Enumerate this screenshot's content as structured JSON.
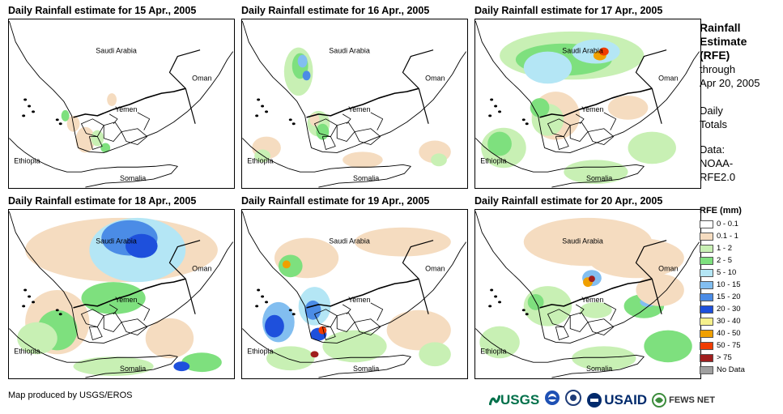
{
  "panels": [
    {
      "title": "Daily Rainfall estimate for 15 Apr., 2005",
      "level": 1
    },
    {
      "title": "Daily Rainfall estimate for 16 Apr., 2005",
      "level": 2
    },
    {
      "title": "Daily Rainfall estimate for 17 Apr., 2005",
      "level": 3
    },
    {
      "title": "Daily Rainfall estimate for 18 Apr., 2005",
      "level": 4
    },
    {
      "title": "Daily Rainfall estimate for 19 Apr., 2005",
      "level": 5
    },
    {
      "title": "Daily Rainfall estimate for 20 Apr., 2005",
      "level": 6
    }
  ],
  "map_labels": {
    "saudi": "Saudi Arabia",
    "oman": "Oman",
    "yemen": "Yemen",
    "ethiopia": "Ethiopia",
    "somalia": "Somalia"
  },
  "sidebar": {
    "title_line1": "Rainfall",
    "title_line2": "Estimate",
    "title_line3": "(RFE)",
    "through": "through",
    "date": "Apr 20, 2005",
    "daily1": "Daily",
    "daily2": "Totals",
    "data1": "Data:",
    "data2": "NOAA-",
    "data3": "RFE2.0"
  },
  "legend": {
    "title": "RFE (mm)",
    "items": [
      {
        "label": "0 - 0.1",
        "color": "#ffffff"
      },
      {
        "label": "0.1 - 1",
        "color": "#f5dcc0"
      },
      {
        "label": "1 - 2",
        "color": "#c8f0b4"
      },
      {
        "label": "2 - 5",
        "color": "#7ee07e"
      },
      {
        "label": "5 - 10",
        "color": "#b4e6f5"
      },
      {
        "label": "10 - 15",
        "color": "#82bef0"
      },
      {
        "label": "15 - 20",
        "color": "#4b8ce6"
      },
      {
        "label": "20 - 30",
        "color": "#1e50dc"
      },
      {
        "label": "30 - 40",
        "color": "#f5f08c"
      },
      {
        "label": "40 - 50",
        "color": "#f0a000"
      },
      {
        "label": "50 - 75",
        "color": "#f03c00"
      },
      {
        "label": "> 75",
        "color": "#a01e1e"
      },
      {
        "label": "No Data",
        "color": "#a0a0a0"
      }
    ]
  },
  "footer": {
    "credit": "Map produced by USGS/EROS",
    "logo_usgs": "USGS",
    "logo_usaid": "USAID",
    "logo_fews": "FEWS NET"
  }
}
